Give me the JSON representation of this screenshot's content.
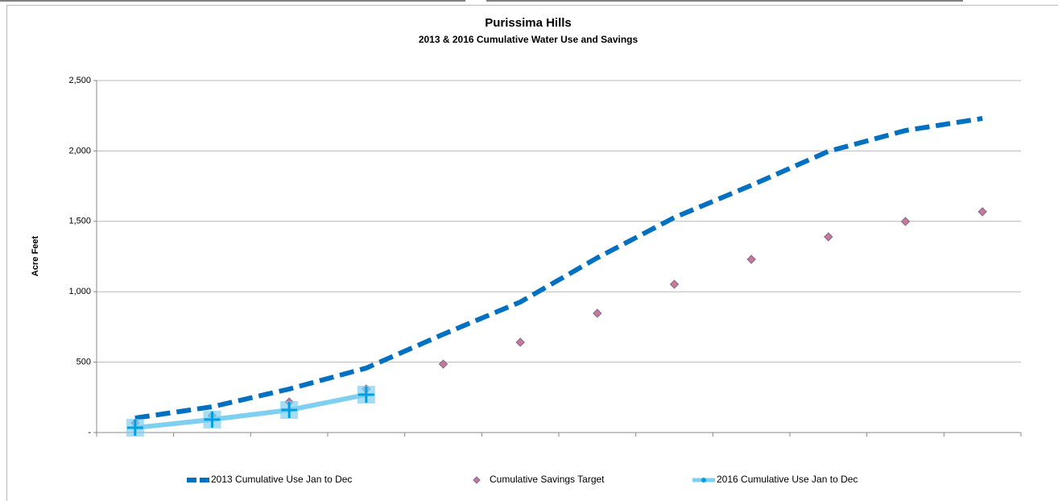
{
  "chart_data": {
    "type": "line",
    "title": "Purissima Hills",
    "subtitle": "2013 & 2016 Cumulative Water Use and Savings",
    "y_label": "Acre Feet",
    "categories": [
      null,
      null,
      null,
      null,
      null,
      null,
      null,
      null,
      null,
      null,
      null,
      null
    ],
    "ylim": [
      0,
      2500
    ],
    "yticks": [
      {
        "value": 0,
        "label": "-"
      },
      500,
      {
        "value": 1000,
        "label": "1,000"
      },
      {
        "value": 1500,
        "label": "1,500"
      },
      {
        "value": 2000,
        "label": "2,000"
      },
      {
        "value": 2500,
        "label": "2,500"
      }
    ],
    "grid": true,
    "legend": "bottom",
    "series": [
      {
        "name": "2013 Cumulative Use Jan to Dec",
        "color": "#0070c0",
        "line_style": "dashed",
        "marker": "none",
        "values": [
          103,
          183,
          309,
          458,
          698,
          927,
          1241,
          1527,
          1756,
          1997,
          2145,
          2231
        ]
      },
      {
        "name": "Cumulative Savings Target",
        "color": "#c77b8e",
        "line_style": "none",
        "marker": "diamond",
        "values": [
          69,
          120,
          217,
          309,
          486,
          641,
          847,
          1053,
          1230,
          1390,
          1499,
          1568
        ]
      },
      {
        "name": "2016 Cumulative Use Jan to Dec",
        "color": "#7fd0f0",
        "line_style": "solid",
        "marker": "plus",
        "values": [
          34,
          92,
          160,
          269,
          null,
          null,
          null,
          null,
          null,
          null,
          null,
          null
        ]
      }
    ]
  }
}
